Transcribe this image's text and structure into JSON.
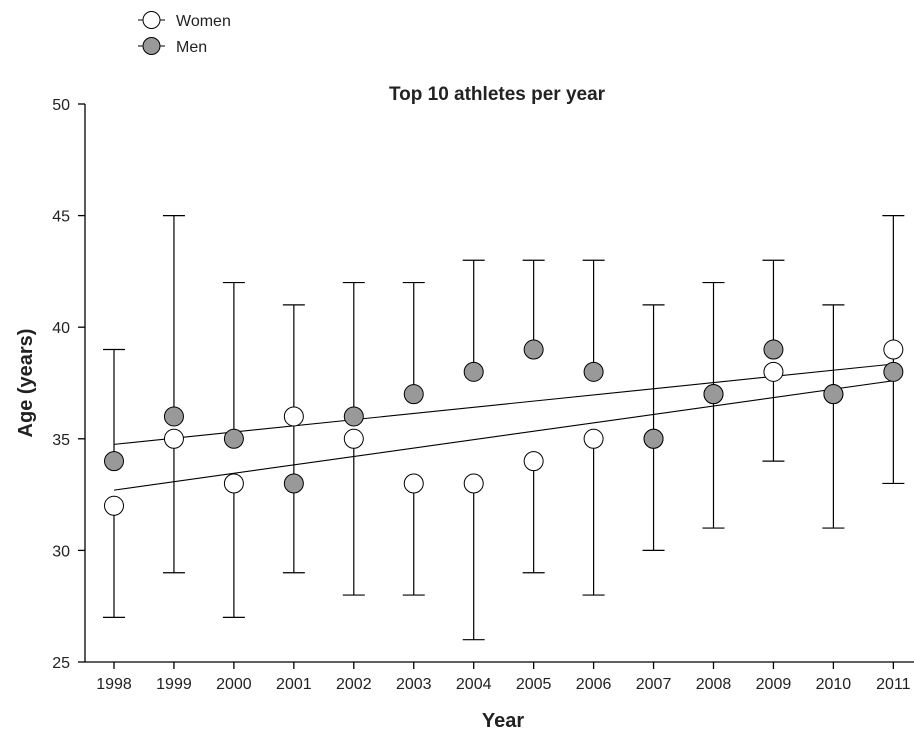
{
  "chart_data": {
    "type": "scatter",
    "title": "Top 10 athletes per year",
    "xlabel": "Year",
    "ylabel": "Age (years)",
    "x": [
      "1998",
      "1999",
      "2000",
      "2001",
      "2002",
      "2003",
      "2004",
      "2005",
      "2006",
      "2007",
      "2008",
      "2009",
      "2010",
      "2011"
    ],
    "ylim": [
      25,
      50
    ],
    "yticks": [
      25,
      30,
      35,
      40,
      45,
      50
    ],
    "series": [
      {
        "name": "Women",
        "marker": "open-circle",
        "color": "#ffffff",
        "values": [
          32,
          35,
          33,
          36,
          35,
          33,
          33,
          34,
          35,
          35,
          37,
          38,
          37,
          39
        ],
        "error_low": [
          27,
          29,
          27,
          29,
          28,
          28,
          26,
          29,
          28,
          30,
          31,
          34,
          31,
          33
        ],
        "error_high": [
          null,
          null,
          null,
          41,
          null,
          null,
          null,
          null,
          null,
          null,
          null,
          null,
          null,
          45
        ],
        "trend": [
          32.7,
          37.6
        ]
      },
      {
        "name": "Men",
        "marker": "filled-circle",
        "color": "#999999",
        "values": [
          34,
          36,
          35,
          33,
          36,
          37,
          38,
          39,
          38,
          35,
          37,
          39,
          37,
          38
        ],
        "error_low": [
          null,
          null,
          null,
          null,
          null,
          null,
          null,
          null,
          null,
          null,
          null,
          null,
          null,
          null
        ],
        "error_high": [
          39,
          45,
          42,
          null,
          42,
          42,
          43,
          43,
          43,
          41,
          42,
          43,
          41,
          null
        ],
        "trend": [
          34.75,
          38.35
        ]
      }
    ],
    "legend_position": "top-left, above the plot",
    "grid": false
  }
}
